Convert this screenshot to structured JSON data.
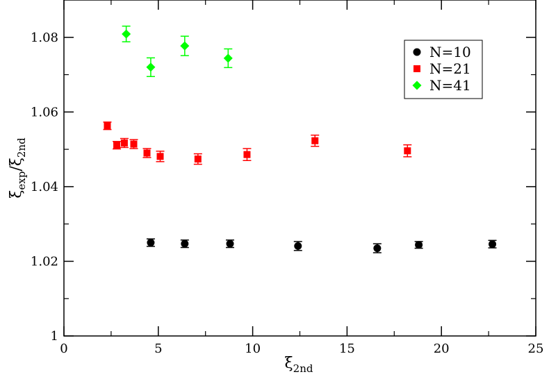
{
  "chart_data": {
    "type": "scatter",
    "xlabel": "ξ2nd",
    "ylabel": "ξexp/ξ2nd",
    "xlabel_parts": {
      "base": "ξ",
      "sub": "2nd"
    },
    "ylabel_parts": {
      "base1": "ξ",
      "sub1": "exp",
      "slash": "/",
      "base2": "ξ",
      "sub2": "2nd"
    },
    "xlim": [
      0,
      25
    ],
    "ylim": [
      1.0,
      1.09
    ],
    "x_ticks": [
      0,
      5,
      10,
      15,
      20,
      25
    ],
    "x_tick_labels": [
      "0",
      "5",
      "10",
      "15",
      "20",
      "25"
    ],
    "y_ticks": [
      1.0,
      1.02,
      1.04,
      1.06,
      1.08
    ],
    "y_tick_labels": [
      "1",
      "1.02",
      "1.04",
      "1.06",
      "1.08"
    ],
    "grid": false,
    "legend_position": "top-right",
    "series": [
      {
        "name": "N=10",
        "marker": "circle",
        "color": "#000000",
        "points": [
          {
            "x": 4.6,
            "y": 1.025,
            "err": 0.001
          },
          {
            "x": 6.4,
            "y": 1.0247,
            "err": 0.001
          },
          {
            "x": 8.8,
            "y": 1.0247,
            "err": 0.001
          },
          {
            "x": 12.4,
            "y": 1.0241,
            "err": 0.0012
          },
          {
            "x": 16.6,
            "y": 1.0235,
            "err": 0.0012
          },
          {
            "x": 18.8,
            "y": 1.0244,
            "err": 0.0009
          },
          {
            "x": 22.7,
            "y": 1.0246,
            "err": 0.001
          }
        ]
      },
      {
        "name": "N=21",
        "marker": "square",
        "color": "#ff0000",
        "points": [
          {
            "x": 2.3,
            "y": 1.0563,
            "err": 0.001
          },
          {
            "x": 2.8,
            "y": 1.0511,
            "err": 0.001
          },
          {
            "x": 3.2,
            "y": 1.0517,
            "err": 0.0012
          },
          {
            "x": 3.7,
            "y": 1.0514,
            "err": 0.0012
          },
          {
            "x": 4.4,
            "y": 1.049,
            "err": 0.0012
          },
          {
            "x": 5.1,
            "y": 1.0481,
            "err": 0.0014
          },
          {
            "x": 7.1,
            "y": 1.0474,
            "err": 0.0014
          },
          {
            "x": 9.7,
            "y": 1.0486,
            "err": 0.0016
          },
          {
            "x": 13.3,
            "y": 1.0523,
            "err": 0.0015
          },
          {
            "x": 18.2,
            "y": 1.0496,
            "err": 0.0016
          }
        ]
      },
      {
        "name": "N=41",
        "marker": "diamond",
        "color": "#00ff00",
        "points": [
          {
            "x": 3.3,
            "y": 1.0809,
            "err": 0.0021
          },
          {
            "x": 4.6,
            "y": 1.072,
            "err": 0.0025
          },
          {
            "x": 6.4,
            "y": 1.0777,
            "err": 0.0026
          },
          {
            "x": 8.7,
            "y": 1.0744,
            "err": 0.0025
          }
        ]
      }
    ]
  }
}
